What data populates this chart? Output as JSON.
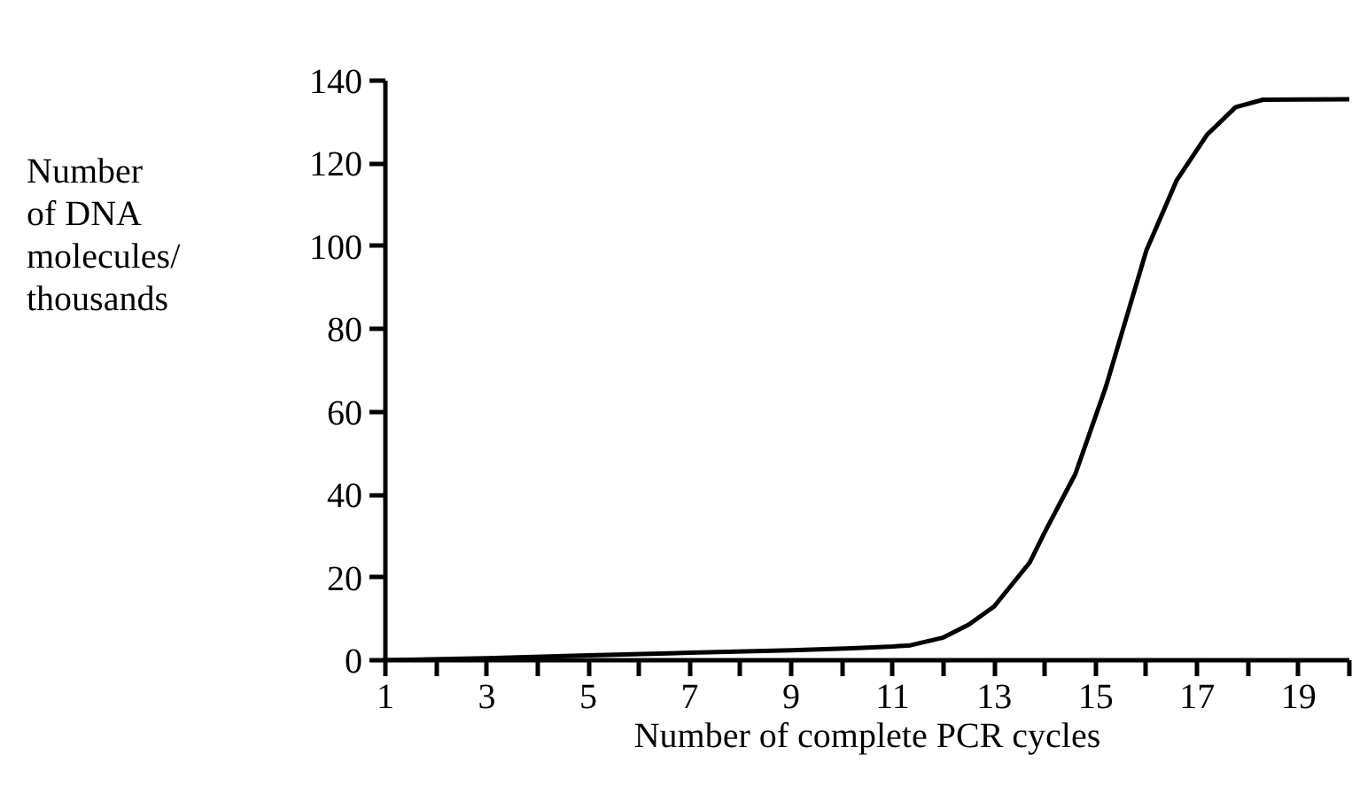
{
  "chart_data": {
    "type": "line",
    "xlabel": "Number of complete PCR cycles",
    "ylabel": "Number\nof DNA\nmolecules/\nthousands",
    "xlim": [
      1,
      20
    ],
    "ylim": [
      0,
      140
    ],
    "xticks": [
      1,
      {
        "value": 2,
        "label": null
      },
      3,
      {
        "value": 4,
        "label": null
      },
      5,
      {
        "value": 6,
        "label": null
      },
      7,
      {
        "value": 8,
        "label": null
      },
      9,
      {
        "value": 10,
        "label": null
      },
      11,
      {
        "value": 12,
        "label": null
      },
      13,
      {
        "value": 14,
        "label": null
      },
      15,
      {
        "value": 16,
        "label": null
      },
      17,
      {
        "value": 18,
        "label": null
      },
      19,
      {
        "value": 20,
        "label": null
      }
    ],
    "yticks": [
      0,
      20,
      40,
      60,
      80,
      100,
      120,
      140
    ],
    "grid": false,
    "marker": "none",
    "line_style": "solid",
    "series": [
      {
        "color": "#000000",
        "x": [
          1,
          3,
          5,
          7,
          9,
          10.2,
          11,
          11.35,
          12,
          12.5,
          13,
          13.7,
          14,
          14.6,
          15.2,
          15.66,
          16,
          16.6,
          17.2,
          17.76,
          18.3,
          20
        ],
        "values": [
          0,
          0.5,
          1.2,
          1.8,
          2.4,
          2.9,
          3.3,
          3.6,
          5.5,
          8.6,
          13,
          23.6,
          31,
          45,
          66,
          85,
          99,
          116,
          127,
          133.6,
          135.4,
          135.5
        ]
      }
    ]
  }
}
